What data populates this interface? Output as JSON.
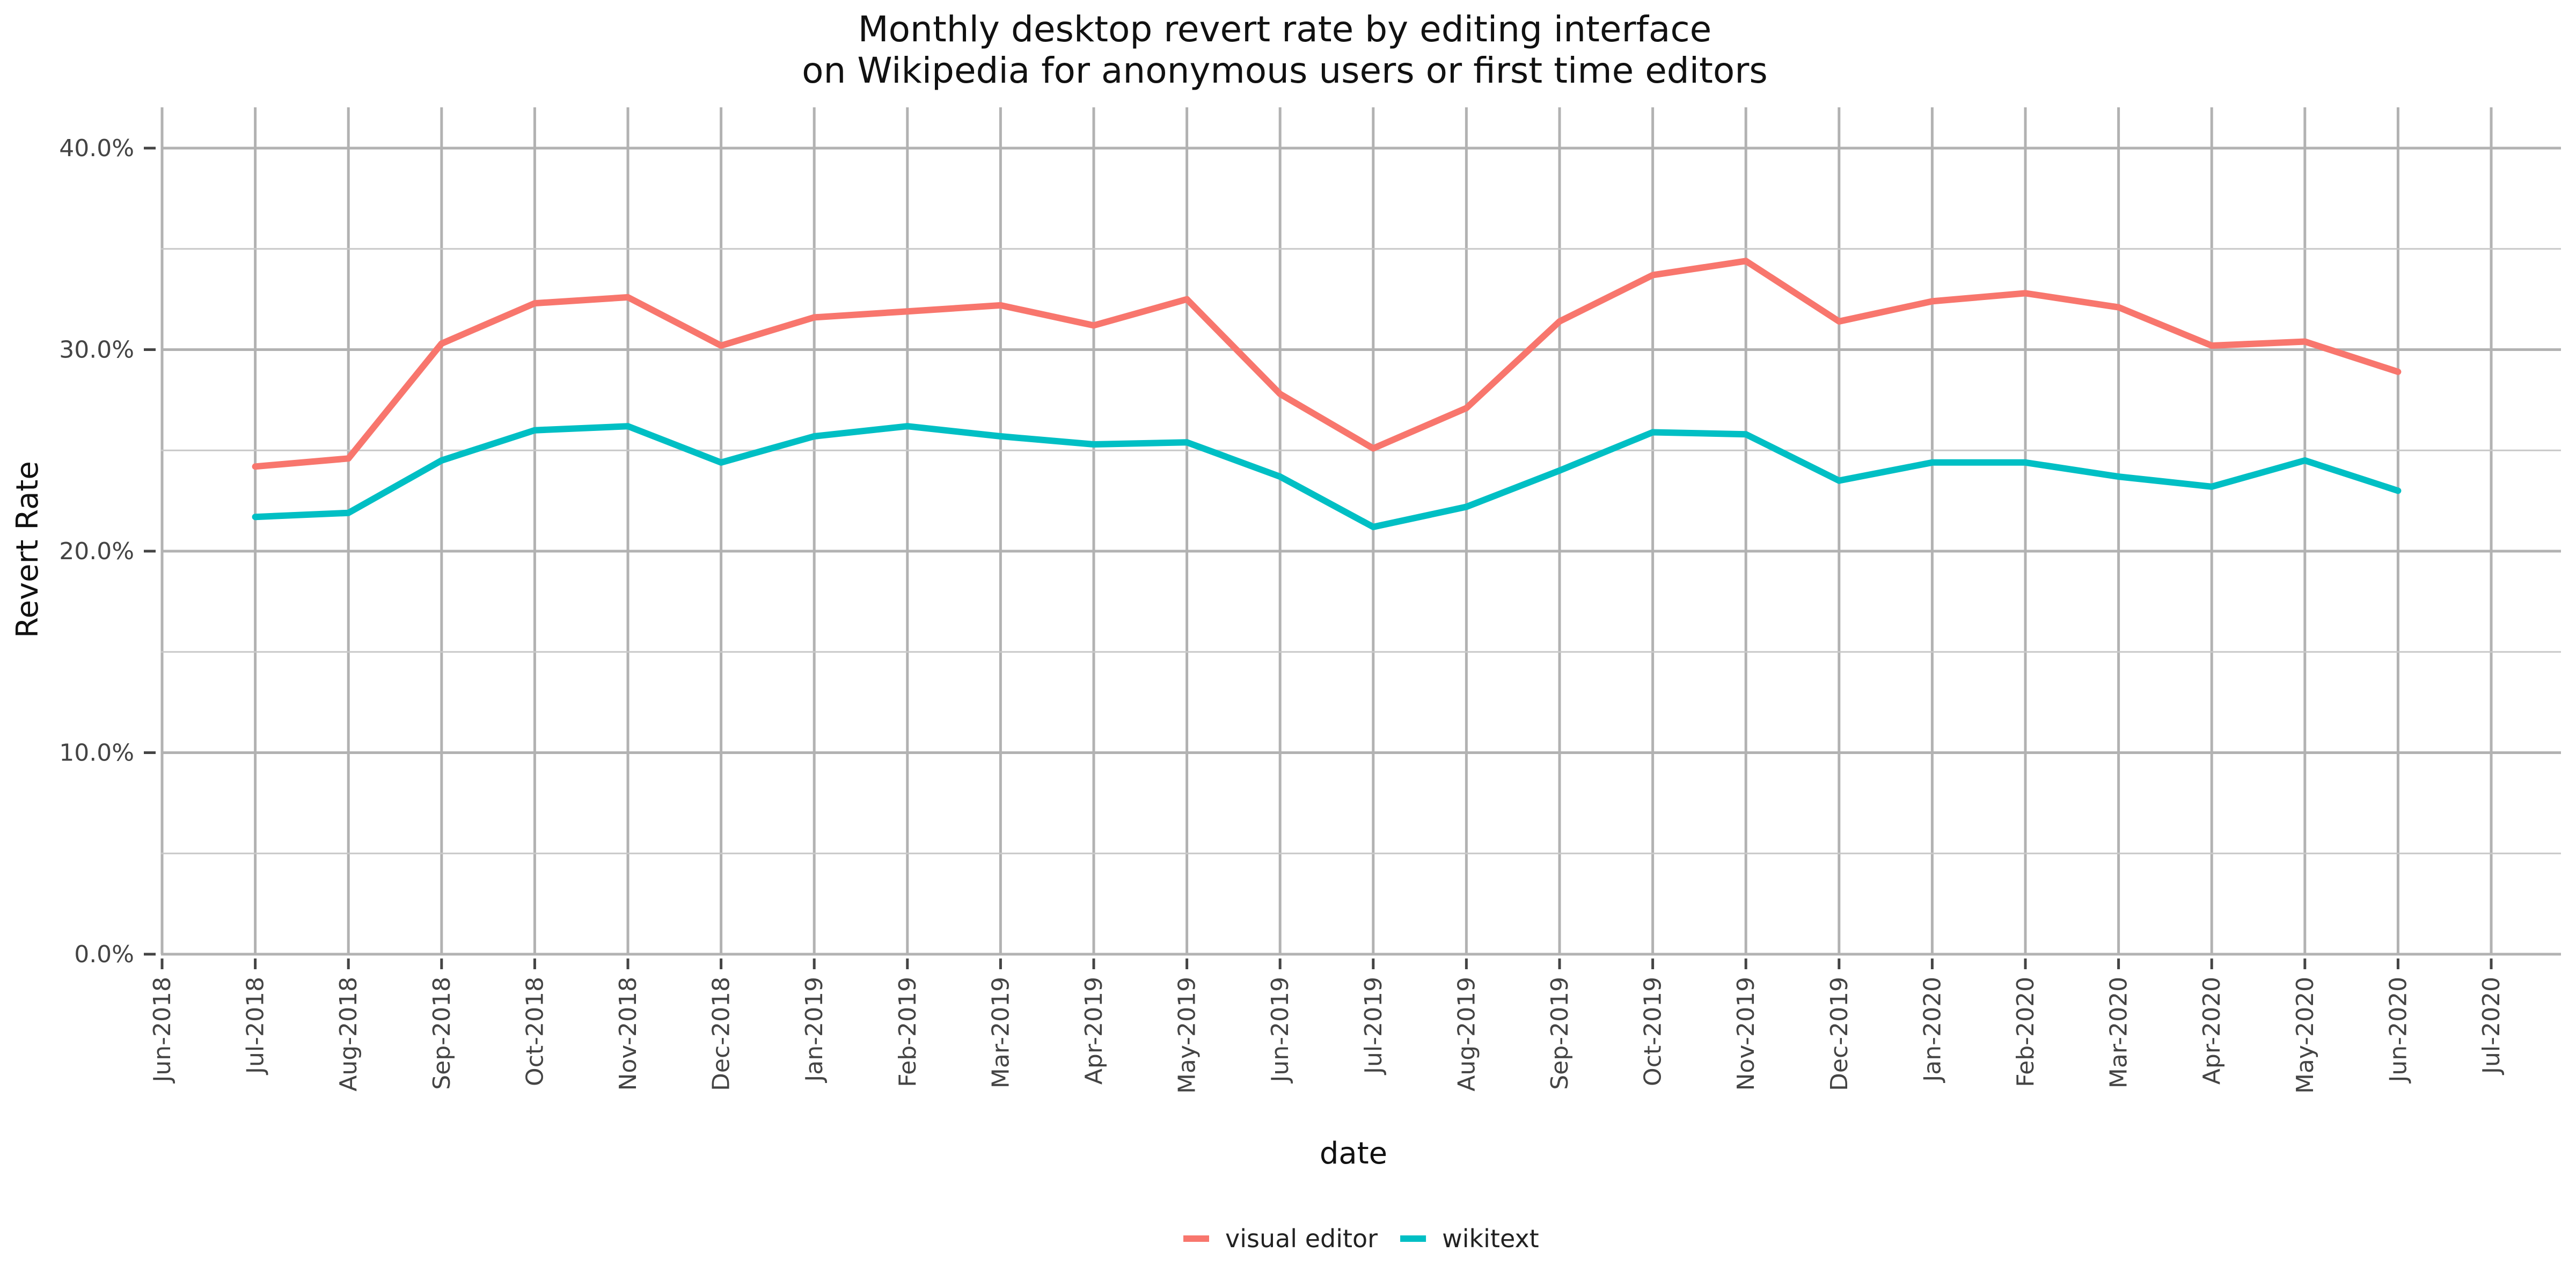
{
  "chart_data": {
    "type": "line",
    "title_lines": [
      "Monthly desktop revert rate by editing interface",
      "on Wikipedia for anonymous users or first time editors"
    ],
    "xlabel": "date",
    "ylabel": "Revert Rate",
    "x_ticks": [
      "Jun-2018",
      "Jul-2018",
      "Aug-2018",
      "Sep-2018",
      "Oct-2018",
      "Nov-2018",
      "Dec-2018",
      "Jan-2019",
      "Feb-2019",
      "Mar-2019",
      "Apr-2019",
      "May-2019",
      "Jun-2019",
      "Jul-2019",
      "Aug-2019",
      "Sep-2019",
      "Oct-2019",
      "Nov-2019",
      "Dec-2019",
      "Jan-2020",
      "Feb-2020",
      "Mar-2020",
      "Apr-2020",
      "May-2020",
      "Jun-2020",
      "Jul-2020"
    ],
    "x": [
      "Jul-2018",
      "Aug-2018",
      "Sep-2018",
      "Oct-2018",
      "Nov-2018",
      "Dec-2018",
      "Jan-2019",
      "Feb-2019",
      "Mar-2019",
      "Apr-2019",
      "May-2019",
      "Jun-2019",
      "Jul-2019",
      "Aug-2019",
      "Sep-2019",
      "Oct-2019",
      "Nov-2019",
      "Dec-2019",
      "Jan-2020",
      "Feb-2020",
      "Mar-2020",
      "Apr-2020",
      "May-2020",
      "Jun-2020"
    ],
    "y_ticks": [
      "0.0%",
      "10.0%",
      "20.0%",
      "30.0%",
      "40.0%"
    ],
    "ylim": [
      0,
      40
    ],
    "y_unit": "%",
    "grid": true,
    "legend_position": "bottom",
    "series": [
      {
        "name": "visual editor",
        "color": "#F8766D",
        "values": [
          24.2,
          24.6,
          30.3,
          32.3,
          32.6,
          30.2,
          31.6,
          31.9,
          32.2,
          31.2,
          32.5,
          27.8,
          25.1,
          27.1,
          31.4,
          33.7,
          34.4,
          31.4,
          32.4,
          32.8,
          32.1,
          30.2,
          30.4,
          28.9
        ]
      },
      {
        "name": "wikitext",
        "color": "#00BFC4",
        "values": [
          21.7,
          21.9,
          24.5,
          26.0,
          26.2,
          24.4,
          25.7,
          26.2,
          25.7,
          25.3,
          25.4,
          23.7,
          21.2,
          22.2,
          24.0,
          25.9,
          25.8,
          23.5,
          24.4,
          24.4,
          23.7,
          23.2,
          24.5,
          23.0
        ]
      }
    ]
  }
}
